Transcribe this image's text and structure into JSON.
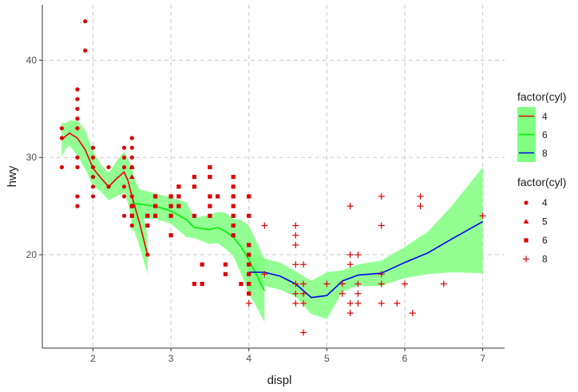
{
  "chart_data": {
    "type": "scatter",
    "xlabel": "displ",
    "ylabel": "hwy",
    "xlim": [
      1.35,
      7.28
    ],
    "ylim": [
      10.4,
      45.7
    ],
    "xticks": [
      "2",
      "3",
      "4",
      "5",
      "6",
      "7"
    ],
    "yticks": [
      "20",
      "30",
      "40"
    ],
    "xtick_values": [
      2,
      3,
      4,
      5,
      6,
      7
    ],
    "ytick_values": [
      20,
      30,
      40
    ],
    "grid": true,
    "colors": {
      "points": "#dd0000",
      "band": "#80ff80",
      "line_4": "#ee0000",
      "line_6": "#00ee00",
      "line_8": "#0000ee",
      "axis": "#333333",
      "grid": "#c8c8c8"
    },
    "legend_lines": {
      "title": "factor(cyl)",
      "placement": "right",
      "items": [
        {
          "label": "4",
          "color": "#ee0000"
        },
        {
          "label": "6",
          "color": "#00ee00"
        },
        {
          "label": "8",
          "color": "#0000ee"
        }
      ]
    },
    "legend_shapes": {
      "title": "factor(cyl)",
      "placement": "right",
      "items": [
        {
          "label": "4",
          "shape": "circle"
        },
        {
          "label": "5",
          "shape": "triangle"
        },
        {
          "label": "6",
          "shape": "square"
        },
        {
          "label": "8",
          "shape": "plus"
        }
      ]
    },
    "points": [
      {
        "cyl": "4",
        "shape": "circle",
        "xy": [
          [
            1.6,
            33
          ],
          [
            1.6,
            32
          ],
          [
            1.6,
            29
          ],
          [
            1.8,
            29
          ],
          [
            1.8,
            26
          ],
          [
            1.8,
            25
          ],
          [
            1.8,
            30
          ],
          [
            1.8,
            33
          ],
          [
            1.8,
            35
          ],
          [
            1.8,
            36
          ],
          [
            1.8,
            34
          ],
          [
            1.8,
            37
          ],
          [
            1.8,
            33
          ],
          [
            1.9,
            44
          ],
          [
            1.9,
            41
          ],
          [
            2.0,
            31
          ],
          [
            2.0,
            30
          ],
          [
            2.0,
            29
          ],
          [
            2.0,
            28
          ],
          [
            2.0,
            27
          ],
          [
            2.0,
            26
          ],
          [
            2.0,
            29
          ],
          [
            2.2,
            27
          ],
          [
            2.2,
            29
          ],
          [
            2.4,
            31
          ],
          [
            2.4,
            30
          ],
          [
            2.4,
            27
          ],
          [
            2.4,
            26
          ],
          [
            2.4,
            24
          ],
          [
            2.4,
            29
          ],
          [
            2.5,
            32
          ],
          [
            2.5,
            31
          ],
          [
            2.5,
            30
          ],
          [
            2.5,
            29
          ],
          [
            2.5,
            26
          ],
          [
            2.5,
            25
          ],
          [
            2.5,
            23
          ],
          [
            2.7,
            20
          ]
        ]
      },
      {
        "cyl": "5",
        "shape": "triangle",
        "xy": [
          [
            2.5,
            29
          ],
          [
            2.5,
            28
          ]
        ]
      },
      {
        "cyl": "6",
        "shape": "square",
        "xy": [
          [
            2.5,
            25
          ],
          [
            2.5,
            24
          ],
          [
            2.7,
            24
          ],
          [
            2.7,
            23
          ],
          [
            2.8,
            26
          ],
          [
            2.8,
            25
          ],
          [
            2.8,
            24
          ],
          [
            3.0,
            26
          ],
          [
            3.0,
            25
          ],
          [
            3.0,
            24
          ],
          [
            3.0,
            22
          ],
          [
            3.1,
            25
          ],
          [
            3.1,
            26
          ],
          [
            3.1,
            27
          ],
          [
            3.3,
            28
          ],
          [
            3.3,
            27
          ],
          [
            3.3,
            24
          ],
          [
            3.3,
            17
          ],
          [
            3.4,
            19
          ],
          [
            3.4,
            17
          ],
          [
            3.5,
            29
          ],
          [
            3.5,
            28
          ],
          [
            3.5,
            26
          ],
          [
            3.5,
            25
          ],
          [
            3.5,
            24
          ],
          [
            3.6,
            26
          ],
          [
            3.7,
            19
          ],
          [
            3.7,
            18
          ],
          [
            3.8,
            28
          ],
          [
            3.8,
            27
          ],
          [
            3.8,
            26
          ],
          [
            3.8,
            25
          ],
          [
            3.8,
            24
          ],
          [
            3.8,
            23
          ],
          [
            3.8,
            22
          ],
          [
            3.9,
            17
          ],
          [
            4.0,
            26
          ],
          [
            4.0,
            24
          ],
          [
            4.0,
            21
          ],
          [
            4.0,
            20
          ],
          [
            4.0,
            19
          ],
          [
            4.0,
            18
          ],
          [
            4.0,
            17
          ],
          [
            4.0,
            16
          ]
        ]
      },
      {
        "cyl": "8",
        "shape": "plus",
        "xy": [
          [
            4.0,
            15
          ],
          [
            4.2,
            18
          ],
          [
            4.2,
            23
          ],
          [
            4.6,
            23
          ],
          [
            4.6,
            22
          ],
          [
            4.6,
            21
          ],
          [
            4.6,
            19
          ],
          [
            4.6,
            17
          ],
          [
            4.6,
            16
          ],
          [
            4.6,
            15
          ],
          [
            4.7,
            19
          ],
          [
            4.7,
            17
          ],
          [
            4.7,
            16
          ],
          [
            4.7,
            15
          ],
          [
            4.7,
            12
          ],
          [
            5.0,
            17
          ],
          [
            5.2,
            17
          ],
          [
            5.2,
            16
          ],
          [
            5.3,
            25
          ],
          [
            5.3,
            20
          ],
          [
            5.3,
            19
          ],
          [
            5.3,
            15
          ],
          [
            5.3,
            14
          ],
          [
            5.4,
            20
          ],
          [
            5.4,
            17
          ],
          [
            5.4,
            16
          ],
          [
            5.4,
            15
          ],
          [
            5.7,
            26
          ],
          [
            5.7,
            23
          ],
          [
            5.7,
            18
          ],
          [
            5.7,
            17
          ],
          [
            5.7,
            15
          ],
          [
            5.9,
            15
          ],
          [
            6.0,
            17
          ],
          [
            6.1,
            14
          ],
          [
            6.2,
            26
          ],
          [
            6.2,
            25
          ],
          [
            6.5,
            17
          ],
          [
            7.0,
            24
          ]
        ]
      }
    ],
    "smooth_series": [
      {
        "cyl": "4",
        "color": "#ee0000",
        "x": [
          1.6,
          1.65,
          1.7,
          1.8,
          1.9,
          2.0,
          2.1,
          2.2,
          2.3,
          2.4,
          2.45,
          2.5,
          2.6,
          2.7
        ],
        "y": [
          31.8,
          32.2,
          32.5,
          32.0,
          30.8,
          28.9,
          27.9,
          27.0,
          27.8,
          28.5,
          27.6,
          26.0,
          23.2,
          20.0
        ],
        "ymin": [
          30.0,
          30.9,
          31.2,
          30.2,
          28.8,
          27.1,
          26.5,
          25.6,
          26.0,
          26.4,
          25.3,
          23.2,
          20.8,
          18.0
        ],
        "ymax": [
          33.6,
          33.5,
          33.8,
          33.8,
          32.8,
          30.7,
          29.3,
          28.4,
          29.6,
          30.6,
          29.9,
          28.8,
          25.6,
          22.0
        ]
      },
      {
        "cyl": "6",
        "color": "#00ee00",
        "x": [
          2.5,
          2.6,
          2.8,
          3.0,
          3.2,
          3.3,
          3.5,
          3.6,
          3.7,
          3.8,
          3.9,
          4.0,
          4.1,
          4.2
        ],
        "y": [
          25.3,
          25.2,
          25.0,
          24.5,
          23.6,
          22.8,
          22.6,
          22.8,
          22.4,
          21.8,
          20.8,
          19.5,
          17.9,
          16.3
        ],
        "ymin": [
          22.3,
          23.7,
          23.7,
          23.2,
          21.8,
          21.7,
          21.1,
          21.2,
          20.6,
          19.9,
          18.0,
          16.0,
          14.6,
          13.1
        ],
        "ymax": [
          28.3,
          26.7,
          26.3,
          25.9,
          25.4,
          23.8,
          24.1,
          24.4,
          24.3,
          23.7,
          23.6,
          23.0,
          21.3,
          19.6
        ]
      },
      {
        "cyl": "8",
        "color": "#0000ee",
        "x": [
          4.0,
          4.2,
          4.4,
          4.6,
          4.7,
          4.8,
          5.0,
          5.2,
          5.4,
          5.7,
          6.0,
          6.3,
          6.6,
          7.0
        ],
        "y": [
          18.2,
          18.2,
          17.8,
          17.0,
          16.3,
          15.6,
          15.8,
          17.3,
          17.9,
          18.1,
          19.2,
          20.2,
          21.6,
          23.4
        ],
        "ymin": [
          16.2,
          16.8,
          16.4,
          15.7,
          14.8,
          13.9,
          13.4,
          16.2,
          16.8,
          16.8,
          17.6,
          18.0,
          18.2,
          18.1
        ],
        "ymax": [
          20.2,
          19.6,
          19.2,
          18.3,
          17.8,
          17.3,
          18.2,
          18.4,
          19.0,
          19.4,
          20.8,
          22.4,
          25.0,
          29.0
        ]
      }
    ]
  }
}
